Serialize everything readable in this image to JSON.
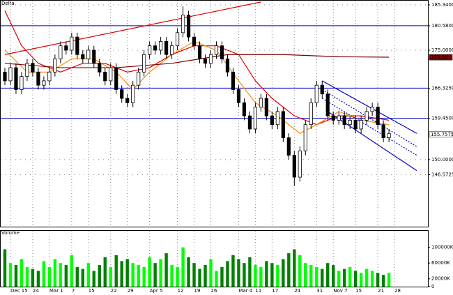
{
  "chart_data": {
    "type": "candlestick",
    "title": "Delta",
    "volume_title": "Volume",
    "opens": [
      170,
      168,
      171,
      166,
      169,
      172,
      170,
      167,
      168,
      170,
      173,
      176,
      175,
      178,
      174,
      173,
      175,
      172,
      170,
      168,
      171,
      166,
      164,
      163,
      167,
      170,
      174,
      176,
      175,
      177,
      174,
      176,
      179,
      183,
      178,
      176,
      173,
      172,
      174,
      176,
      173,
      170,
      166,
      163,
      160,
      157,
      162,
      164,
      160,
      158,
      161,
      155,
      151,
      146,
      152,
      158,
      163,
      167,
      165,
      160,
      159,
      160,
      158,
      159,
      157,
      159,
      161,
      162,
      158,
      155
    ],
    "highs": [
      171,
      172,
      172,
      170,
      173,
      173,
      171,
      169,
      171,
      174,
      177,
      177,
      179,
      179,
      175,
      176,
      176,
      173,
      171,
      172,
      172,
      167,
      165,
      168,
      171,
      175,
      177,
      177,
      178,
      178,
      177,
      180,
      185,
      184,
      179,
      177,
      174,
      175,
      177,
      177,
      174,
      171,
      167,
      164,
      161,
      163,
      165,
      165,
      161,
      162,
      162,
      156,
      152,
      153,
      159,
      164,
      168,
      168,
      166,
      161,
      161,
      161,
      160,
      160,
      160,
      162,
      163,
      163,
      159,
      157
    ],
    "lows": [
      167,
      167,
      165,
      165,
      168,
      169,
      166,
      166,
      167,
      169,
      172,
      174,
      174,
      173,
      172,
      172,
      171,
      169,
      167,
      167,
      165,
      163,
      162,
      162,
      166,
      169,
      173,
      174,
      174,
      173,
      173,
      175,
      178,
      177,
      175,
      172,
      171,
      171,
      173,
      172,
      169,
      165,
      162,
      159,
      156,
      156,
      161,
      159,
      157,
      157,
      154,
      150,
      144,
      145,
      151,
      157,
      162,
      164,
      159,
      158,
      158,
      157,
      157,
      156,
      156,
      158,
      160,
      157,
      154,
      154
    ],
    "closes": [
      168,
      171,
      166,
      169,
      172,
      170,
      167,
      168,
      170,
      173,
      176,
      175,
      178,
      174,
      173,
      175,
      172,
      170,
      168,
      171,
      166,
      164,
      163,
      167,
      170,
      174,
      176,
      175,
      177,
      174,
      176,
      179,
      183,
      178,
      176,
      173,
      172,
      174,
      176,
      173,
      170,
      166,
      163,
      160,
      157,
      162,
      164,
      160,
      158,
      161,
      155,
      151,
      146,
      152,
      158,
      163,
      167,
      165,
      160,
      159,
      160,
      158,
      159,
      157,
      159,
      161,
      162,
      158,
      155,
      156
    ],
    "volumes": [
      95000,
      60000,
      55000,
      70000,
      50000,
      45000,
      40000,
      65000,
      50000,
      70000,
      60000,
      55000,
      80000,
      50000,
      45000,
      60000,
      40000,
      55000,
      75000,
      50000,
      80000,
      65000,
      70000,
      60000,
      55000,
      50000,
      75000,
      60000,
      70000,
      85000,
      55000,
      50000,
      100000,
      75000,
      60000,
      45000,
      55000,
      70000,
      40000,
      50000,
      65000,
      80000,
      70000,
      60000,
      75000,
      55000,
      50000,
      65000,
      60000,
      55000,
      70000,
      85000,
      95000,
      80000,
      60000,
      55000,
      50000,
      45000,
      60000,
      55000,
      40000,
      45000,
      50000,
      40000,
      35000,
      45000,
      40000,
      35000,
      30000,
      35000
    ],
    "up_color": "#ffffff",
    "down_color": "#000000",
    "volume_up_color": "#00ff00",
    "volume_down_color": "#008000",
    "lines": [
      {
        "color": "#e00000",
        "x": [
          0,
          3,
          6,
          10,
          14,
          18,
          22,
          26,
          30,
          34,
          38,
          42,
          45,
          48,
          52,
          56,
          60,
          64,
          69
        ],
        "values": [
          184,
          176,
          172,
          170,
          172,
          172,
          170,
          171,
          174,
          176,
          176,
          174,
          168,
          164,
          160,
          158,
          160,
          160,
          159
        ]
      },
      {
        "color": "#ff8c00",
        "x": [
          0,
          4,
          8,
          12,
          16,
          20,
          23,
          26,
          30,
          34,
          38,
          42,
          45,
          49,
          53,
          56,
          60,
          64,
          69
        ],
        "values": [
          175,
          170,
          170,
          173,
          173,
          170,
          166,
          170,
          174,
          177,
          175,
          168,
          163,
          160,
          156,
          158,
          161,
          159,
          158
        ]
      },
      {
        "color": "#800000",
        "x": [
          0,
          10,
          20,
          30,
          40,
          50,
          60,
          69
        ],
        "values": [
          172,
          171,
          171,
          172,
          174,
          174,
          173.5,
          173.4
        ]
      },
      {
        "color": "#e00000",
        "x": [
          0,
          46
        ],
        "values": [
          174,
          186
        ]
      },
      {
        "color": "#0000cc",
        "x": [
          57,
          74
        ],
        "values": [
          168,
          156
        ]
      },
      {
        "color": "#0000cc",
        "x": [
          58,
          74
        ],
        "values": [
          161,
          147.5
        ]
      },
      {
        "color": "#0000cc",
        "x": [
          57,
          74
        ],
        "values": [
          166,
          153
        ],
        "dashed": true
      },
      {
        "color": "#0000cc",
        "x": [
          57,
          74
        ],
        "values": [
          164,
          151
        ],
        "dashed": true
      }
    ],
    "hlines": [
      180.58,
      166.325,
      159.45
    ],
    "hline_color": "#0000cc",
    "ylim": [
      134.7,
      186.3
    ],
    "yticks": [
      {
        "value": 185.34,
        "label": "185.3400"
      },
      {
        "value": 180.58,
        "label": "180.5800"
      },
      {
        "value": 175,
        "label": "175.0000"
      },
      {
        "value": 166.325,
        "label": "166.3250"
      },
      {
        "value": 159.45,
        "label": "159.4500"
      },
      {
        "value": 150,
        "label": "150.0000"
      },
      {
        "value": 146.5725,
        "label": "146.5725"
      }
    ],
    "price_tags": [
      {
        "value": 173.38,
        "label": "173.38",
        "color": "#800000"
      },
      {
        "value": 155.7575,
        "label": "155.7575",
        "color": "#ffffff"
      }
    ],
    "volume_ylim": [
      0,
      142000
    ],
    "volume_ticks": [
      {
        "value": 100000,
        "label": "100000K"
      },
      {
        "value": 60000,
        "label": "60000K"
      },
      {
        "value": 20000,
        "label": "20000K"
      },
      0
    ],
    "xlim": [
      -0.75,
      76
    ],
    "xticks": [
      {
        "value": 1,
        "label": "Dec 15"
      },
      {
        "value": 5,
        "label": "24"
      },
      {
        "value": 8,
        "label": "Mar 1"
      },
      {
        "value": 12,
        "label": "7"
      },
      {
        "value": 15,
        "label": "15"
      },
      {
        "value": 19,
        "label": "22"
      },
      {
        "value": 22,
        "label": "29"
      },
      {
        "value": 26,
        "label": "Apr 5"
      },
      {
        "value": 31,
        "label": "12"
      },
      {
        "value": 34,
        "label": "19"
      },
      {
        "value": 37,
        "label": "26"
      },
      {
        "value": 42,
        "label": "Mar 4"
      },
      {
        "value": 45,
        "label": "11"
      },
      {
        "value": 48,
        "label": "17"
      },
      {
        "value": 52,
        "label": "24"
      },
      {
        "value": 56,
        "label": "31"
      },
      {
        "value": 59,
        "label": "Nov 7"
      },
      {
        "value": 63,
        "label": "15"
      },
      {
        "value": 67,
        "label": "21"
      },
      {
        "value": 70,
        "label": "28"
      }
    ],
    "grid": true
  }
}
